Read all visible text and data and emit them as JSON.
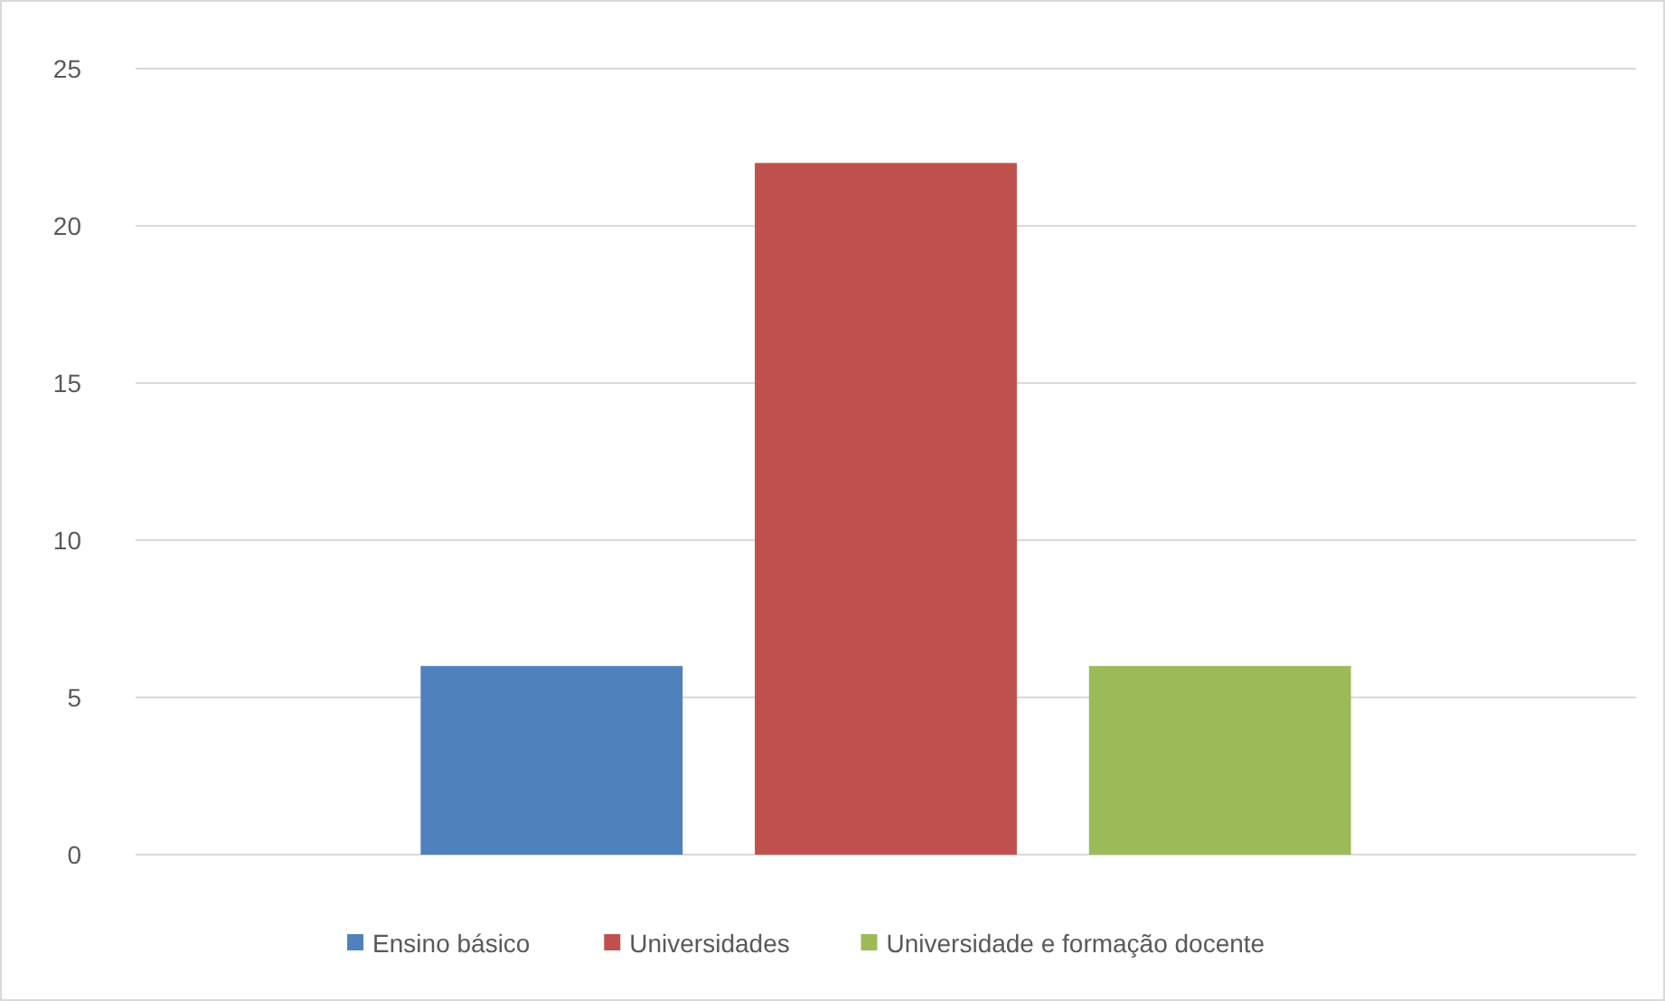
{
  "chart_data": {
    "type": "bar",
    "categories": [
      null
    ],
    "series": [
      {
        "name": "Ensino básico",
        "color": "#4f81bd",
        "values": [
          6
        ]
      },
      {
        "name": "Universidades",
        "color": "#c0504d",
        "values": [
          22
        ]
      },
      {
        "name": "Universidade e formação docente",
        "color": "#9bbb59",
        "values": [
          6
        ]
      }
    ],
    "ylim": [
      0,
      25
    ],
    "yticks": [
      0,
      5,
      10,
      15,
      20,
      25
    ],
    "grid": "y",
    "legend": "bottom"
  }
}
